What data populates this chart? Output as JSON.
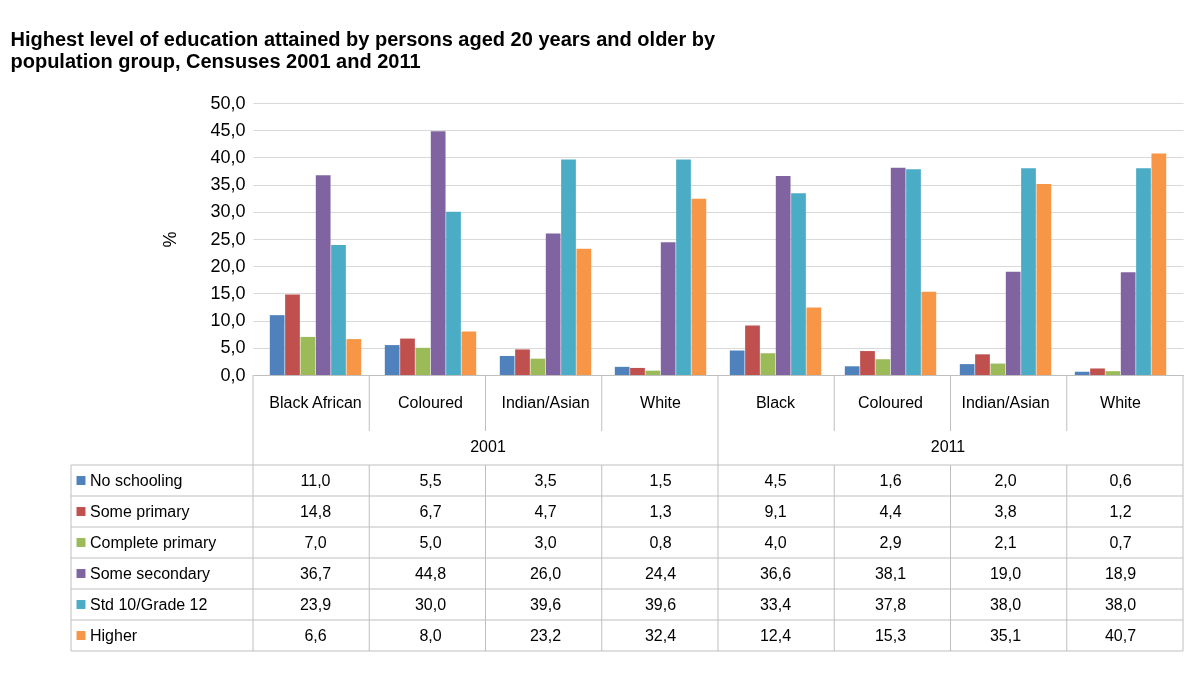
{
  "chart_data": {
    "type": "bar",
    "title": "Highest level of education attained by persons aged 20 years and older by population group, Censuses  2001 and 2011",
    "ylabel": "%",
    "categories": [
      "Black African",
      "Coloured",
      "Indian/Asian",
      "White",
      "Black",
      "Coloured",
      "Indian/Asian",
      "White"
    ],
    "annotations": [
      "2001",
      "2011"
    ],
    "series": [
      {
        "name": "No schooling",
        "color": "#4f81bd",
        "values": [
          11.0,
          5.5,
          3.5,
          1.5,
          4.5,
          1.6,
          2.0,
          0.6
        ],
        "value_labels": [
          "11,0",
          "5,5",
          "3,5",
          "1,5",
          "4,5",
          "1,6",
          "2,0",
          "0,6"
        ]
      },
      {
        "name": "Some primary",
        "color": "#c0504d",
        "values": [
          14.8,
          6.7,
          4.7,
          1.3,
          9.1,
          4.4,
          3.8,
          1.2
        ],
        "value_labels": [
          "14,8",
          "6,7",
          "4,7",
          "1,3",
          "9,1",
          "4,4",
          "3,8",
          "1,2"
        ]
      },
      {
        "name": "Complete primary",
        "color": "#9bbb59",
        "values": [
          7.0,
          5.0,
          3.0,
          0.8,
          4.0,
          2.9,
          2.1,
          0.7
        ],
        "value_labels": [
          "7,0",
          "5,0",
          "3,0",
          "0,8",
          "4,0",
          "2,9",
          "2,1",
          "0,7"
        ]
      },
      {
        "name": "Some secondary",
        "color": "#8064a2",
        "values": [
          36.7,
          44.8,
          26.0,
          24.4,
          36.6,
          38.1,
          19.0,
          18.9
        ],
        "value_labels": [
          "36,7",
          "44,8",
          "26,0",
          "24,4",
          "36,6",
          "38,1",
          "19,0",
          "18,9"
        ]
      },
      {
        "name": "Std 10/Grade 12",
        "color": "#4bacc6",
        "values": [
          23.9,
          30.0,
          39.6,
          39.6,
          33.4,
          37.8,
          38.0,
          38.0
        ],
        "value_labels": [
          "23,9",
          "30,0",
          "39,6",
          "39,6",
          "33,4",
          "37,8",
          "38,0",
          "38,0"
        ]
      },
      {
        "name": "Higher",
        "color": "#f79646",
        "values": [
          6.6,
          8.0,
          23.2,
          32.4,
          12.4,
          15.3,
          35.1,
          40.7
        ],
        "value_labels": [
          "6,6",
          "8,0",
          "23,2",
          "32,4",
          "12,4",
          "15,3",
          "35,1",
          "40,7"
        ]
      }
    ],
    "ylim": [
      0,
      50
    ],
    "yticks": [
      {
        "value": 0,
        "label": "0,0"
      },
      {
        "value": 5,
        "label": "5,0"
      },
      {
        "value": 10,
        "label": "10,0"
      },
      {
        "value": 15,
        "label": "15,0"
      },
      {
        "value": 20,
        "label": "20,0"
      },
      {
        "value": 25,
        "label": "25,0"
      },
      {
        "value": 30,
        "label": "30,0"
      },
      {
        "value": 35,
        "label": "35,0"
      },
      {
        "value": 40,
        "label": "40,0"
      },
      {
        "value": 45,
        "label": "45,0"
      },
      {
        "value": 50,
        "label": "50,0"
      }
    ],
    "grid": "y",
    "legend": "bottom"
  }
}
